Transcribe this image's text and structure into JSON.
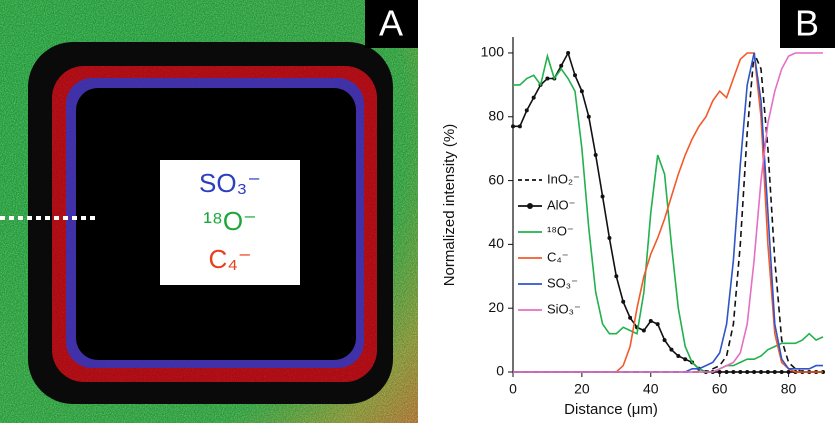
{
  "panel_a": {
    "label": "A",
    "legend": [
      {
        "text": "SO₃⁻",
        "color": "#2b3fbf"
      },
      {
        "text": "¹⁸O⁻",
        "color": "#1aa83a"
      },
      {
        "text": "C₄⁻",
        "color": "#e8401c"
      }
    ]
  },
  "chart_data": {
    "type": "line",
    "panel_label": "B",
    "x_label": "Distance (μm)",
    "y_label": "Normalized intensity (%)",
    "x": [
      0,
      2,
      4,
      6,
      8,
      10,
      12,
      14,
      16,
      18,
      20,
      22,
      24,
      26,
      28,
      30,
      32,
      34,
      36,
      38,
      40,
      42,
      44,
      46,
      48,
      50,
      52,
      54,
      56,
      58,
      60,
      62,
      64,
      66,
      68,
      70,
      72,
      74,
      76,
      78,
      80,
      82,
      84,
      86,
      88,
      90
    ],
    "xlim": [
      0,
      90
    ],
    "xticks": [
      0,
      20,
      40,
      60,
      80
    ],
    "ylim": [
      0,
      105
    ],
    "yticks": [
      0,
      20,
      40,
      60,
      80,
      100
    ],
    "series": [
      {
        "name": "InO₂⁻",
        "color": "#111111",
        "style": "dashed",
        "values": [
          0,
          0,
          0,
          0,
          0,
          0,
          0,
          0,
          0,
          0,
          0,
          0,
          0,
          0,
          0,
          0,
          0,
          0,
          0,
          0,
          0,
          0,
          0,
          0,
          0,
          0,
          0,
          0,
          0,
          1,
          2,
          5,
          15,
          40,
          75,
          100,
          95,
          70,
          35,
          10,
          3,
          1,
          0,
          0,
          0,
          0
        ]
      },
      {
        "name": "AlO⁻",
        "color": "#111111",
        "style": "markers",
        "values": [
          77,
          77,
          82,
          86,
          90,
          92,
          92,
          96,
          100,
          93,
          88,
          80,
          68,
          55,
          42,
          30,
          22,
          17,
          14,
          13,
          16,
          15,
          10,
          7,
          5,
          4,
          3,
          1,
          0,
          0,
          0,
          0,
          0,
          0,
          0,
          0,
          0,
          0,
          0,
          0,
          0,
          0,
          0,
          0,
          0,
          0
        ]
      },
      {
        "name": "¹⁸O⁻",
        "color": "#22b14c",
        "style": "solid",
        "values": [
          90,
          90,
          92,
          93,
          90,
          99,
          92,
          95,
          92,
          88,
          70,
          45,
          25,
          15,
          12,
          12,
          14,
          13,
          12,
          25,
          50,
          68,
          62,
          40,
          20,
          8,
          3,
          1,
          0,
          0,
          1,
          2,
          2,
          3,
          4,
          4,
          5,
          7,
          8,
          9,
          9,
          9,
          10,
          12,
          10,
          11
        ]
      },
      {
        "name": "C₄⁻",
        "color": "#f4592a",
        "style": "solid",
        "values": [
          0,
          0,
          0,
          0,
          0,
          0,
          0,
          0,
          0,
          0,
          0,
          0,
          0,
          0,
          0,
          0,
          2,
          8,
          20,
          30,
          37,
          42,
          48,
          55,
          62,
          68,
          73,
          77,
          80,
          85,
          88,
          86,
          92,
          98,
          100,
          100,
          80,
          40,
          12,
          3,
          1,
          0,
          0,
          0,
          0,
          0
        ]
      },
      {
        "name": "SO₃⁻",
        "color": "#2f55c8",
        "style": "solid",
        "values": [
          0,
          0,
          0,
          0,
          0,
          0,
          0,
          0,
          0,
          0,
          0,
          0,
          0,
          0,
          0,
          0,
          0,
          0,
          0,
          0,
          0,
          0,
          0,
          0,
          0,
          0,
          1,
          1,
          2,
          3,
          6,
          15,
          35,
          65,
          90,
          100,
          85,
          50,
          15,
          4,
          1,
          1,
          1,
          1,
          2,
          2
        ]
      },
      {
        "name": "SiO₃⁻",
        "color": "#e46fc4",
        "style": "solid",
        "values": [
          0,
          0,
          0,
          0,
          0,
          0,
          0,
          0,
          0,
          0,
          0,
          0,
          0,
          0,
          0,
          0,
          0,
          0,
          0,
          0,
          0,
          0,
          0,
          0,
          0,
          0,
          0,
          0,
          0,
          0,
          1,
          2,
          3,
          6,
          15,
          35,
          60,
          78,
          88,
          95,
          99,
          100,
          100,
          100,
          100,
          100
        ]
      }
    ]
  }
}
